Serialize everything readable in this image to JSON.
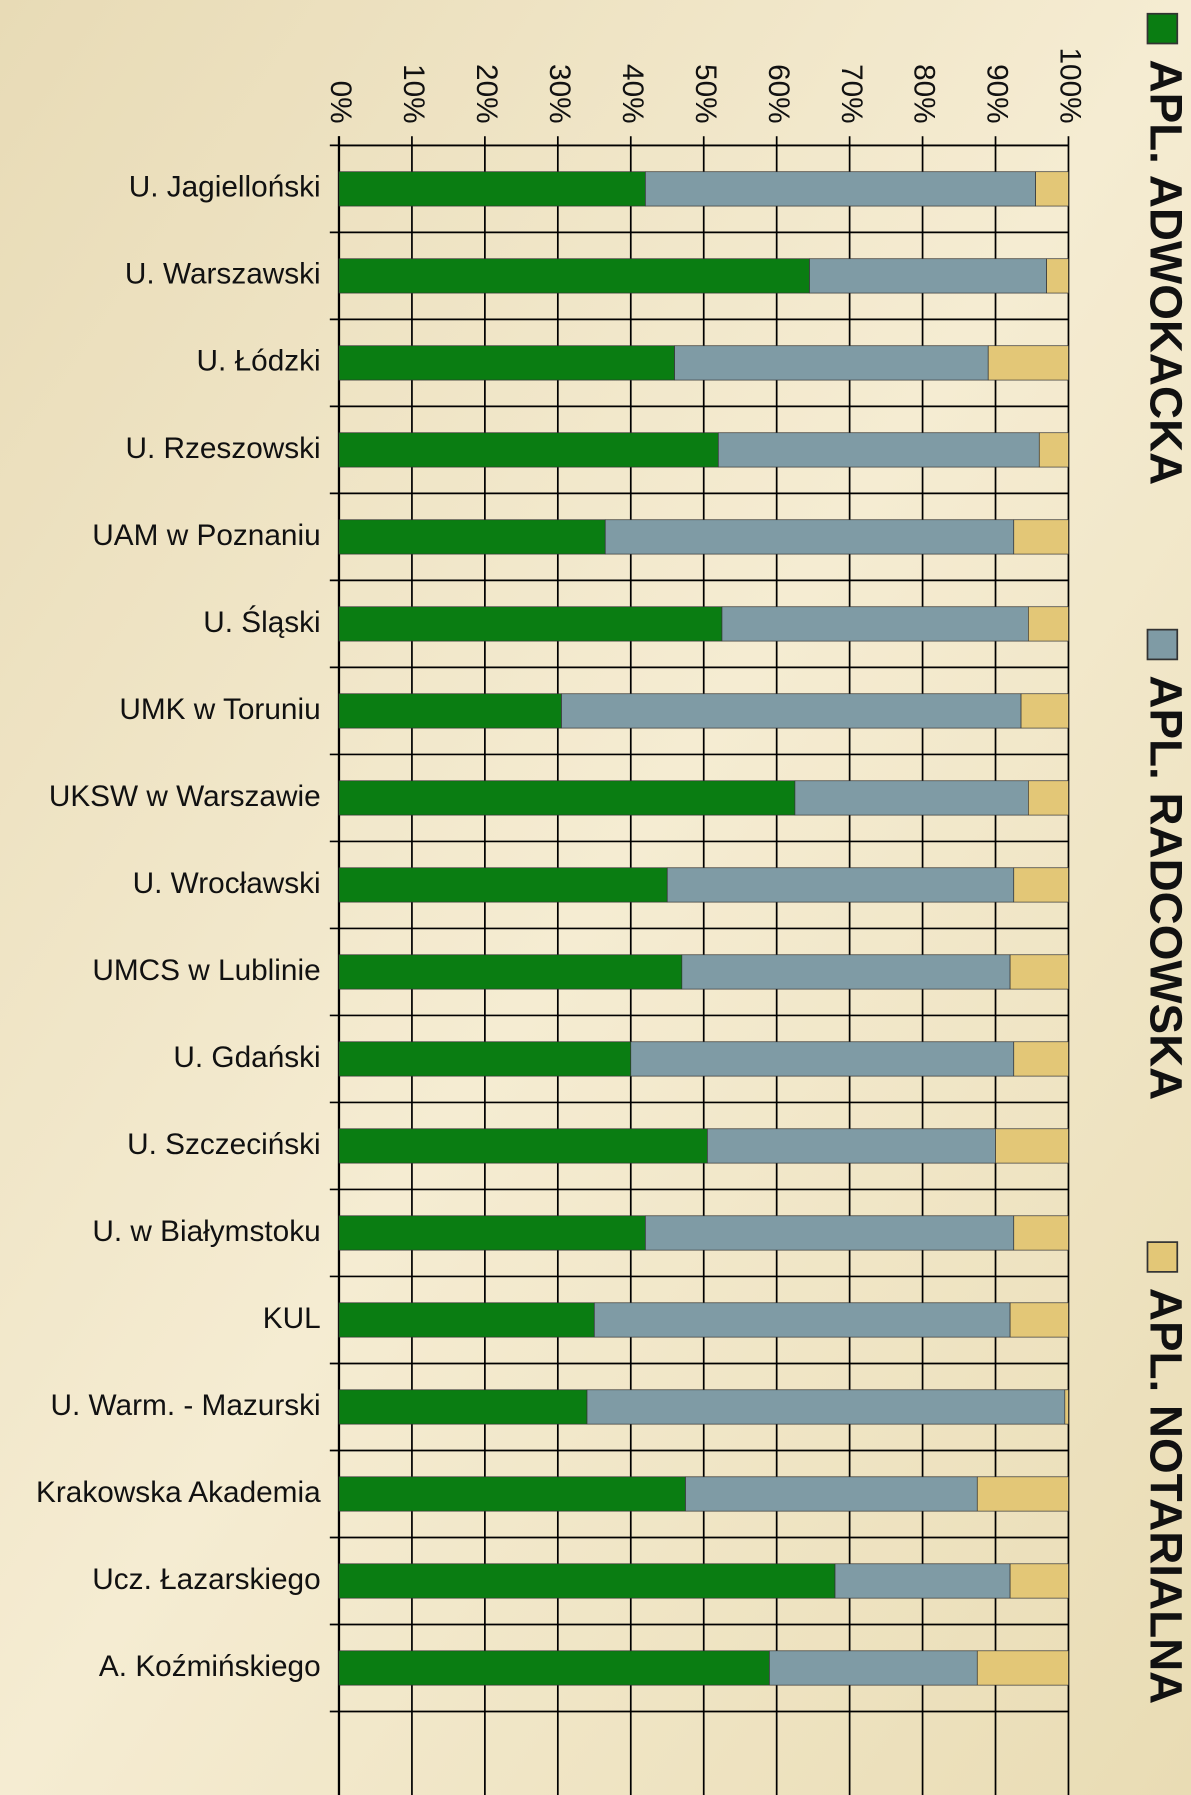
{
  "chart_data": {
    "type": "stacked_bar_horizontal",
    "categories": [
      "U. Jagielloński",
      "U. Warszawski",
      "U. Łódzki",
      "U. Rzeszowski",
      "UAM w Poznaniu",
      "U. Śląski",
      "UMK w Toruniu",
      "UKSW w Warszawie",
      "U. Wrocławski",
      "UMCS w Lublinie",
      "U. Gdański",
      "U. Szczeciński",
      "U. w Białymstoku",
      "KUL",
      "U. Warm. - Mazurski",
      "Krakowska Akademia",
      "Ucz. Łazarskiego",
      "A. Koźmińskiego"
    ],
    "series": [
      {
        "name": "APL. ADWOKACKA",
        "color": "#0a7d12",
        "values": [
          42,
          64.5,
          46,
          52,
          36.5,
          52.5,
          30.5,
          62.5,
          45,
          47,
          40,
          50.5,
          42,
          35,
          34,
          47.5,
          68,
          59
        ]
      },
      {
        "name": "APL. RADCOWSKA",
        "color": "#7f9ba5",
        "values": [
          53.5,
          32.5,
          43,
          44,
          56,
          42,
          63,
          32,
          47.5,
          45,
          52.5,
          39.5,
          50.5,
          57,
          65.5,
          40,
          24,
          28.5
        ]
      },
      {
        "name": "APL. NOTARIALNA",
        "color": "#e3c777",
        "values": [
          4.5,
          3,
          11,
          4,
          7.5,
          5.5,
          6.5,
          5.5,
          7.5,
          8,
          7.5,
          10,
          7.5,
          8,
          0.5,
          12.5,
          8,
          12.5
        ]
      }
    ],
    "xlim": [
      0,
      100
    ],
    "xticks": [
      {
        "value": 0,
        "label": "0%"
      },
      {
        "value": 10,
        "label": "10%"
      },
      {
        "value": 20,
        "label": "20%"
      },
      {
        "value": 30,
        "label": "30%"
      },
      {
        "value": 40,
        "label": "40%"
      },
      {
        "value": 50,
        "label": "50%"
      },
      {
        "value": 60,
        "label": "60%"
      },
      {
        "value": 70,
        "label": "70%"
      },
      {
        "value": 80,
        "label": "80%"
      },
      {
        "value": 90,
        "label": "90%"
      },
      {
        "value": 100,
        "label": "100%"
      }
    ],
    "grid": true
  }
}
